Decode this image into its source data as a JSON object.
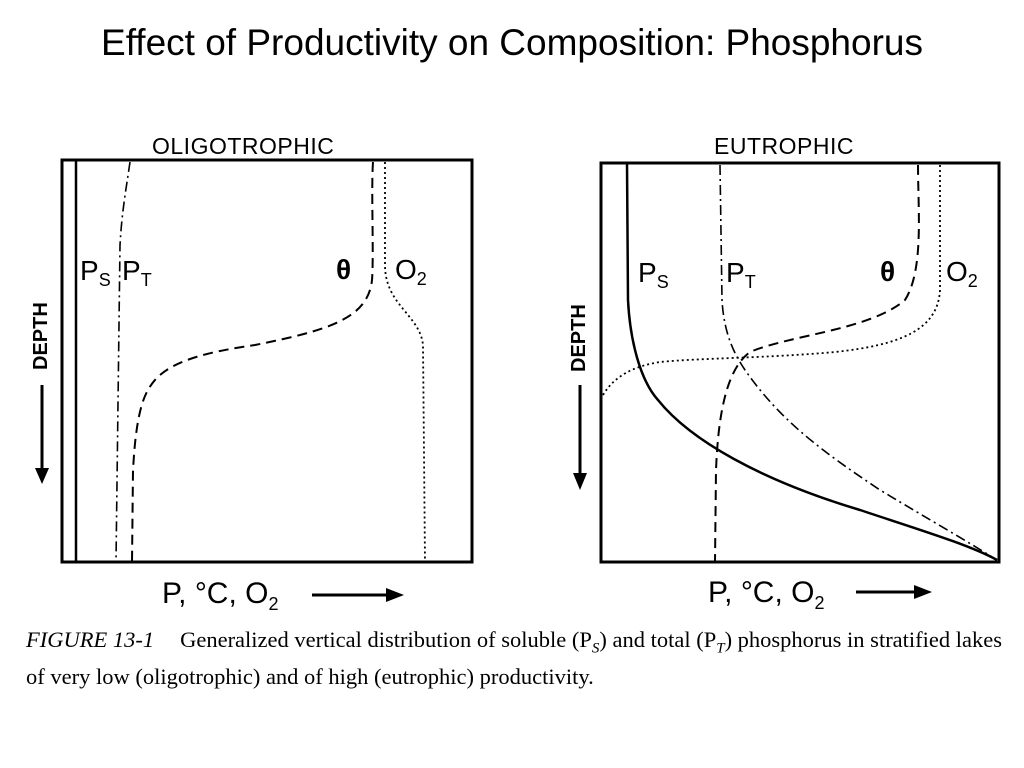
{
  "title": "Effect of Productivity on Composition: Phosphorus",
  "panels": {
    "left": {
      "title": "OLIGOTROPHIC",
      "depth_label": "DEPTH",
      "x_axis_label": "P, °C, O",
      "x_axis_sub": "2",
      "labels": {
        "ps": "P",
        "ps_sub": "S",
        "pt": "P",
        "pt_sub": "T",
        "theta": "θ",
        "o2": "O",
        "o2_sub": "2"
      }
    },
    "right": {
      "title": "EUTROPHIC",
      "depth_label": "DEPTH",
      "x_axis_label": "P, °C, O",
      "x_axis_sub": "2",
      "labels": {
        "ps": "P",
        "ps_sub": "S",
        "pt": "P",
        "pt_sub": "T",
        "theta": "θ",
        "o2": "O",
        "o2_sub": "2"
      }
    }
  },
  "caption": {
    "figure_id": "FIGURE  13-1",
    "text": "Generalized vertical distribution of soluble (P",
    "sub_s": "S",
    "text2": ") and total (P",
    "sub_t": "T",
    "text3": ") phosphorus in stratified lakes of very low (oligotrophic) and of high (eutrophic) productivity."
  }
}
